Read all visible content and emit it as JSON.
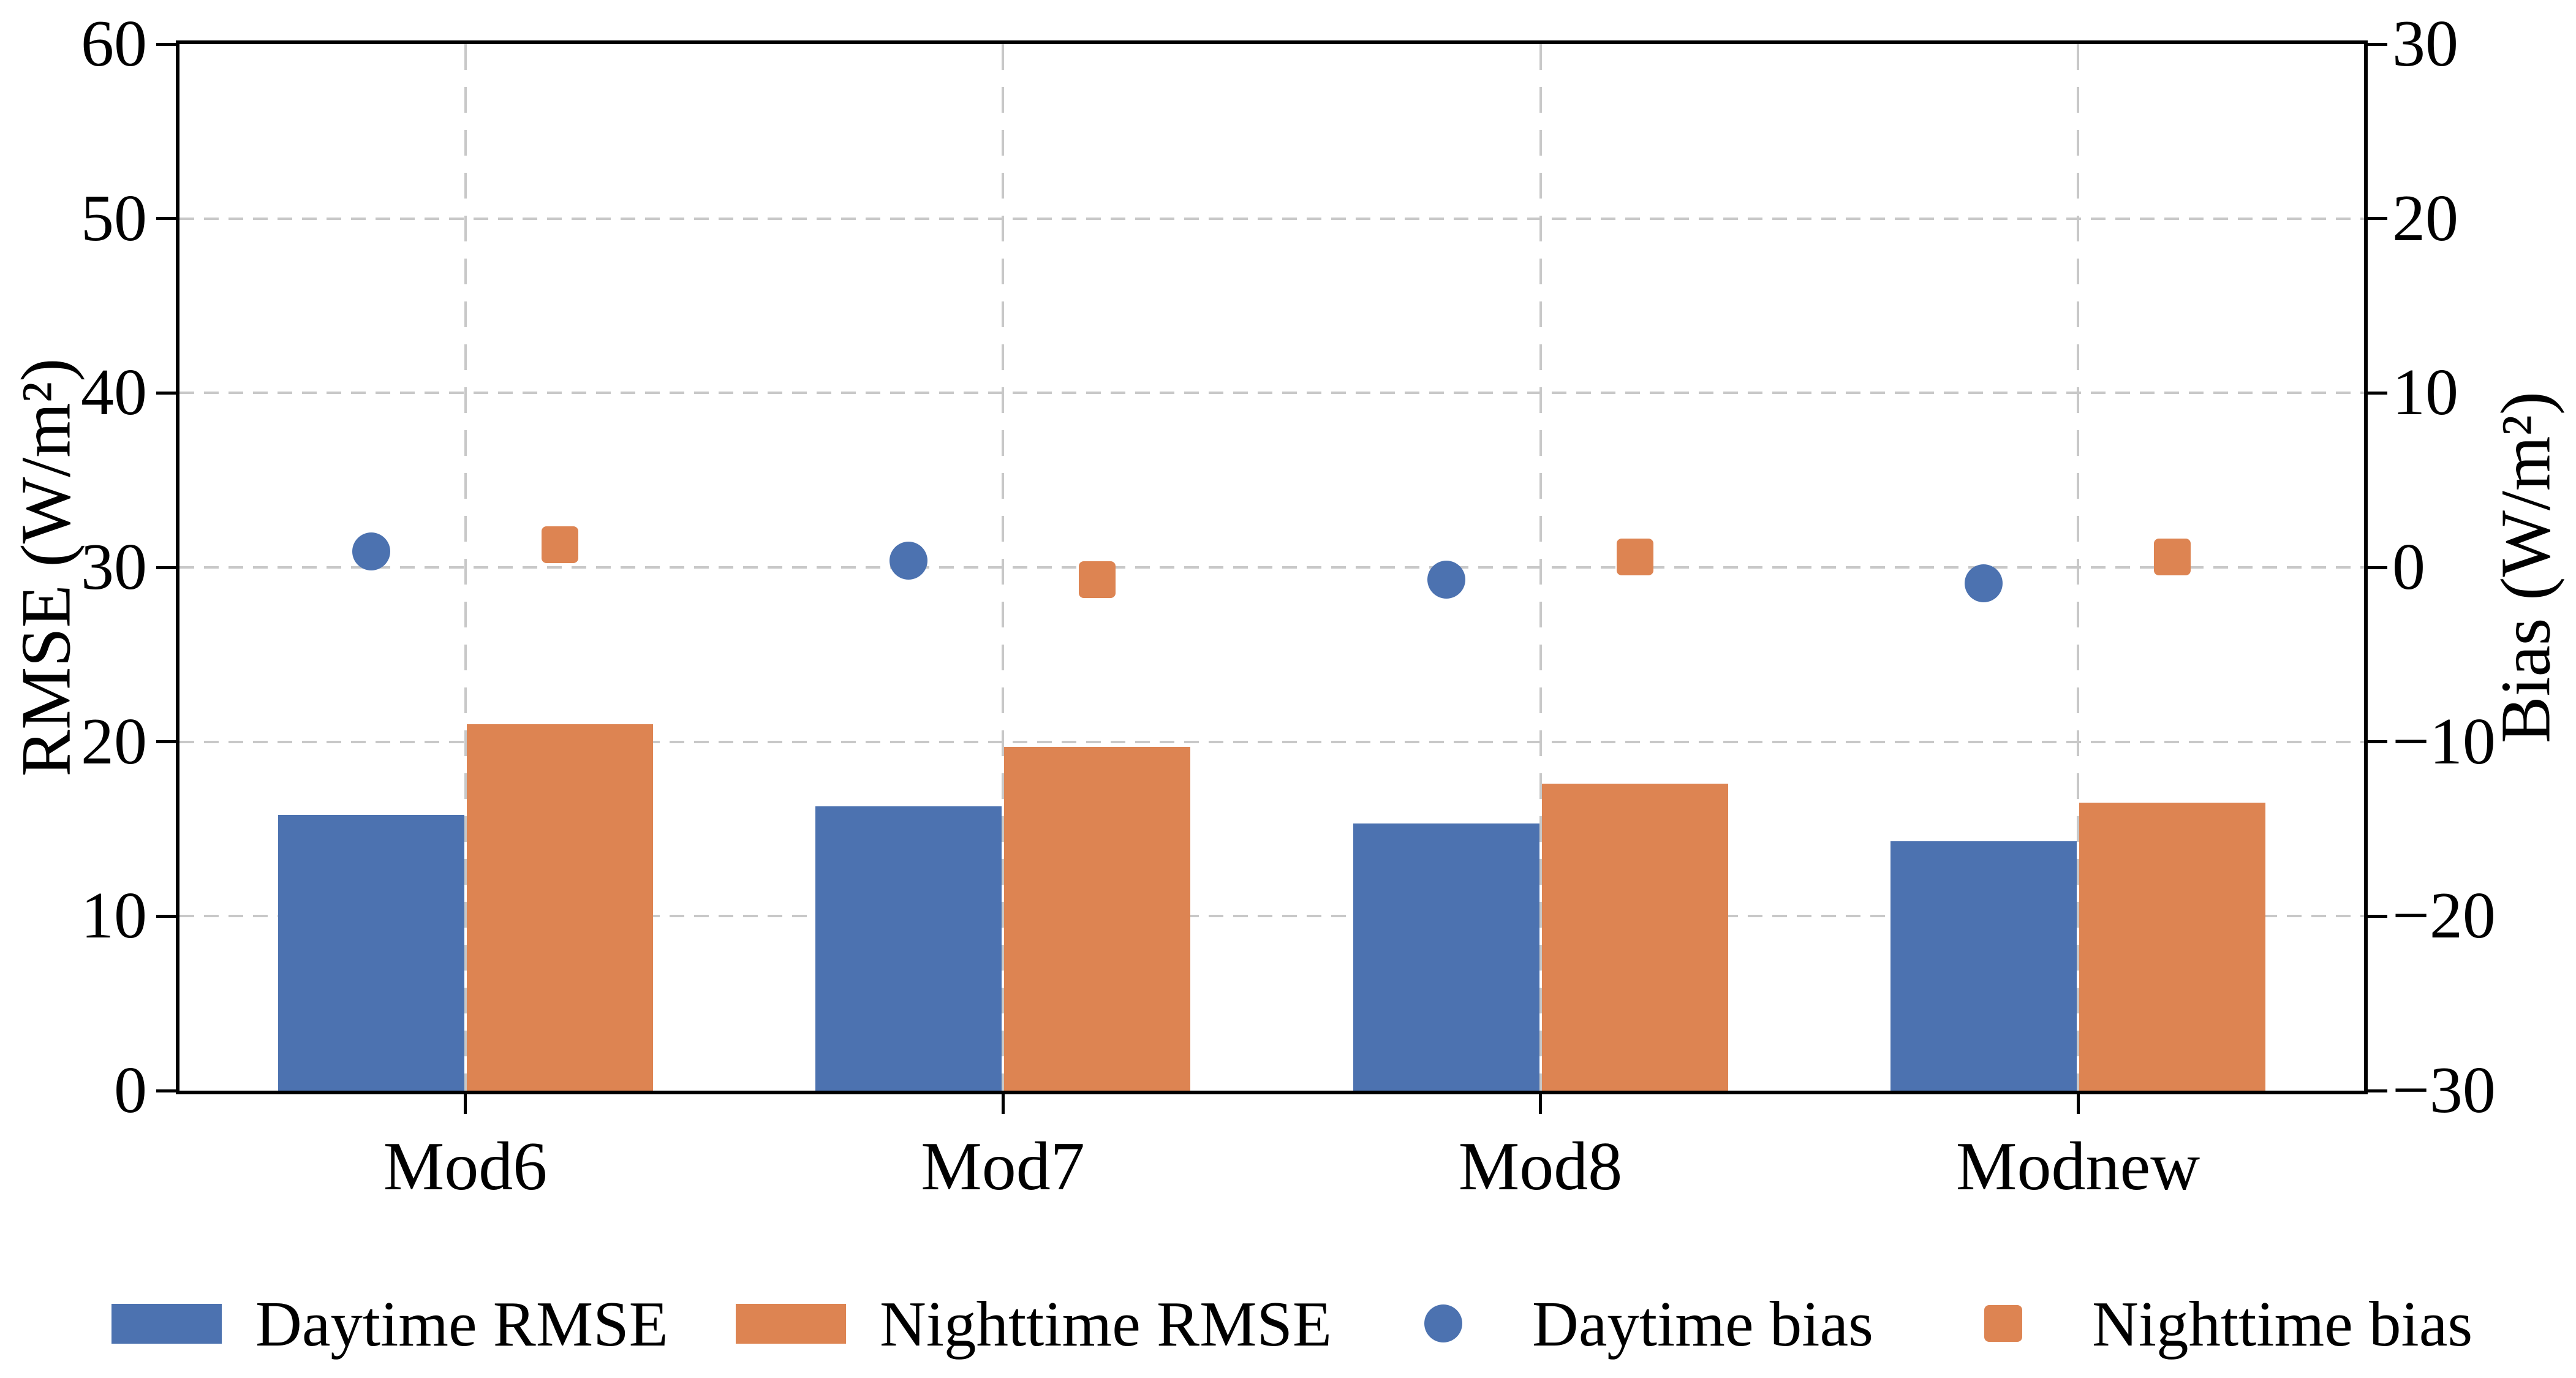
{
  "chart_data": {
    "type": "bar",
    "subtype": "grouped bars (left axis) + scatter markers (right axis), dual y-axis",
    "categories": [
      "Mod6",
      "Mod7",
      "Mod8",
      "Modnew"
    ],
    "series": [
      {
        "name": "Daytime RMSE",
        "axis": "left",
        "kind": "bar",
        "marker": "rect",
        "color": "#4C72B0",
        "values": [
          15.8,
          16.3,
          15.3,
          14.3
        ]
      },
      {
        "name": "Nighttime RMSE",
        "axis": "left",
        "kind": "bar",
        "marker": "rect",
        "color": "#DD8452",
        "values": [
          21.0,
          19.7,
          17.6,
          16.5
        ]
      },
      {
        "name": "Daytime bias",
        "axis": "right",
        "kind": "scatter",
        "marker": "circle",
        "color": "#4C72B0",
        "values": [
          0.9,
          0.4,
          -0.7,
          -0.9
        ]
      },
      {
        "name": "Nighttime bias",
        "axis": "right",
        "kind": "scatter",
        "marker": "square",
        "color": "#DD8452",
        "values": [
          1.3,
          -0.7,
          0.6,
          0.6
        ]
      }
    ],
    "left_axis": {
      "label": "RMSE (W/m²)",
      "min": 0,
      "max": 60,
      "ticks": [
        0,
        10,
        20,
        30,
        40,
        50,
        60
      ]
    },
    "right_axis": {
      "label": "Bias (W/m²)",
      "min": -30,
      "max": 30,
      "ticks": [
        -30,
        -20,
        -10,
        0,
        10,
        20,
        30
      ]
    },
    "grid": {
      "style": "dashed",
      "color": "#c8c8c8",
      "horizontal": true,
      "vertical": true
    },
    "legend": {
      "position": "bottom row, no frame",
      "entries": [
        "Daytime RMSE",
        "Nighttime RMSE",
        "Daytime bias",
        "Nighttime bias"
      ]
    },
    "background": "#ffffff",
    "axis_color": "#000000"
  },
  "minus_sign": "−"
}
